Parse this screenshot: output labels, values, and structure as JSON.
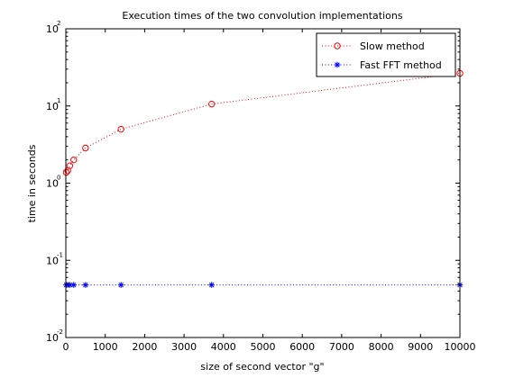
{
  "chart_data": {
    "type": "line",
    "title": "Execution times of the two convolution implementations",
    "xlabel": "size of second vector \"g\"",
    "ylabel": "time in seconds",
    "xlim": [
      0,
      10000
    ],
    "ylim": [
      0.01,
      100
    ],
    "yscale": "log",
    "x_ticks": [
      0,
      1000,
      2000,
      3000,
      4000,
      5000,
      6000,
      7000,
      8000,
      9000,
      10000
    ],
    "y_ticks": [
      {
        "base": "10",
        "exp": "-2",
        "value": 0.01
      },
      {
        "base": "10",
        "exp": "-1",
        "value": 0.1
      },
      {
        "base": "10",
        "exp": "0",
        "value": 1
      },
      {
        "base": "10",
        "exp": "1",
        "value": 10
      },
      {
        "base": "10",
        "exp": "2",
        "value": 100
      }
    ],
    "grid": false,
    "legend_position": "top-right",
    "series": [
      {
        "name": "Slow method",
        "color": "#ff0000",
        "marker": "circle",
        "line_style": "dotted",
        "x": [
          10,
          50,
          100,
          200,
          500,
          1400,
          3700,
          10000
        ],
        "y": [
          1.38,
          1.45,
          1.68,
          2.0,
          2.85,
          5.0,
          10.6,
          26.5
        ]
      },
      {
        "name": "Fast FFT method",
        "color": "#0000ff",
        "marker": "star",
        "line_style": "dotted",
        "x": [
          10,
          50,
          100,
          200,
          500,
          1400,
          3700,
          10000
        ],
        "y": [
          0.048,
          0.048,
          0.048,
          0.048,
          0.048,
          0.048,
          0.048,
          0.048
        ]
      }
    ]
  }
}
